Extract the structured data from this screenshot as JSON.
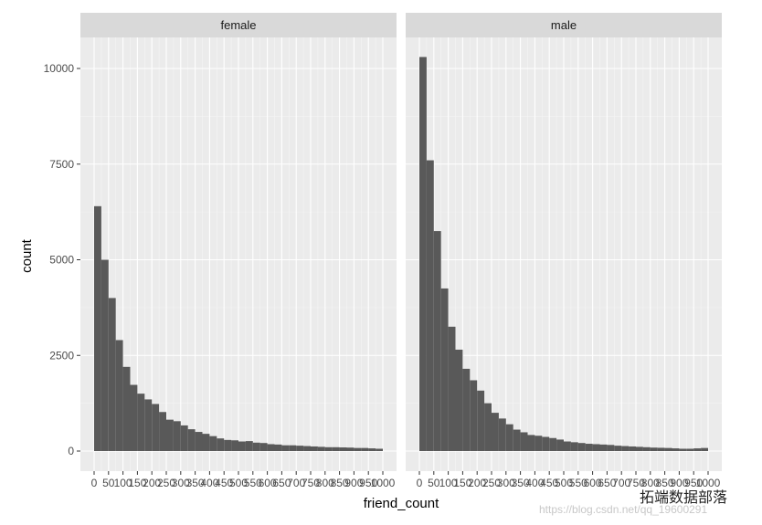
{
  "chart_data": {
    "type": "bar",
    "facets": [
      "female",
      "male"
    ],
    "xlabel": "friend_count",
    "ylabel": "count",
    "xlim": [
      0,
      1000
    ],
    "ylim": [
      0,
      10800
    ],
    "bin_width": 25,
    "y_ticks": [
      0,
      2500,
      5000,
      7500,
      10000
    ],
    "y_tick_labels": [
      "0",
      "2500",
      "5000",
      "7500",
      "10000"
    ],
    "x_ticks": [
      0,
      50,
      100,
      150,
      200,
      250,
      300,
      350,
      400,
      450,
      500,
      550,
      600,
      650,
      700,
      750,
      800,
      850,
      900,
      950,
      1000
    ],
    "x_tick_labels": [
      "0",
      "50",
      "100",
      "150",
      "200",
      "250",
      "300",
      "350",
      "400",
      "450",
      "500",
      "550",
      "600",
      "650",
      "700",
      "750",
      "800",
      "850",
      "900",
      "950",
      "1000"
    ],
    "bin_starts": [
      0,
      25,
      50,
      75,
      100,
      125,
      150,
      175,
      200,
      225,
      250,
      275,
      300,
      325,
      350,
      375,
      400,
      425,
      450,
      475,
      500,
      525,
      550,
      575,
      600,
      625,
      650,
      675,
      700,
      725,
      750,
      775,
      800,
      825,
      850,
      875,
      900,
      925,
      950,
      975
    ],
    "series": [
      {
        "name": "female",
        "values": [
          6400,
          5000,
          4000,
          2900,
          2200,
          1730,
          1500,
          1350,
          1230,
          1020,
          820,
          780,
          670,
          570,
          500,
          450,
          390,
          330,
          290,
          280,
          250,
          260,
          220,
          210,
          180,
          170,
          150,
          150,
          140,
          130,
          120,
          110,
          100,
          100,
          95,
          90,
          80,
          80,
          70,
          60
        ]
      },
      {
        "name": "male",
        "values": [
          10300,
          7600,
          5750,
          4250,
          3250,
          2650,
          2150,
          1850,
          1580,
          1250,
          1000,
          850,
          700,
          560,
          490,
          420,
          400,
          370,
          340,
          300,
          250,
          230,
          210,
          190,
          180,
          170,
          160,
          140,
          130,
          120,
          110,
          100,
          90,
          85,
          80,
          70,
          60,
          60,
          70,
          80
        ]
      }
    ],
    "colors": {
      "bar": "#595959",
      "panel_bg": "#ebebeb",
      "strip_bg": "#d9d9d9",
      "grid_major": "#ffffff",
      "grid_minor": "#f5f5f5"
    },
    "grid": true,
    "legend": "none"
  },
  "watermark": {
    "brand": "拓端数据部落",
    "url": "https://blog.csdn.net/qq_19600291"
  }
}
